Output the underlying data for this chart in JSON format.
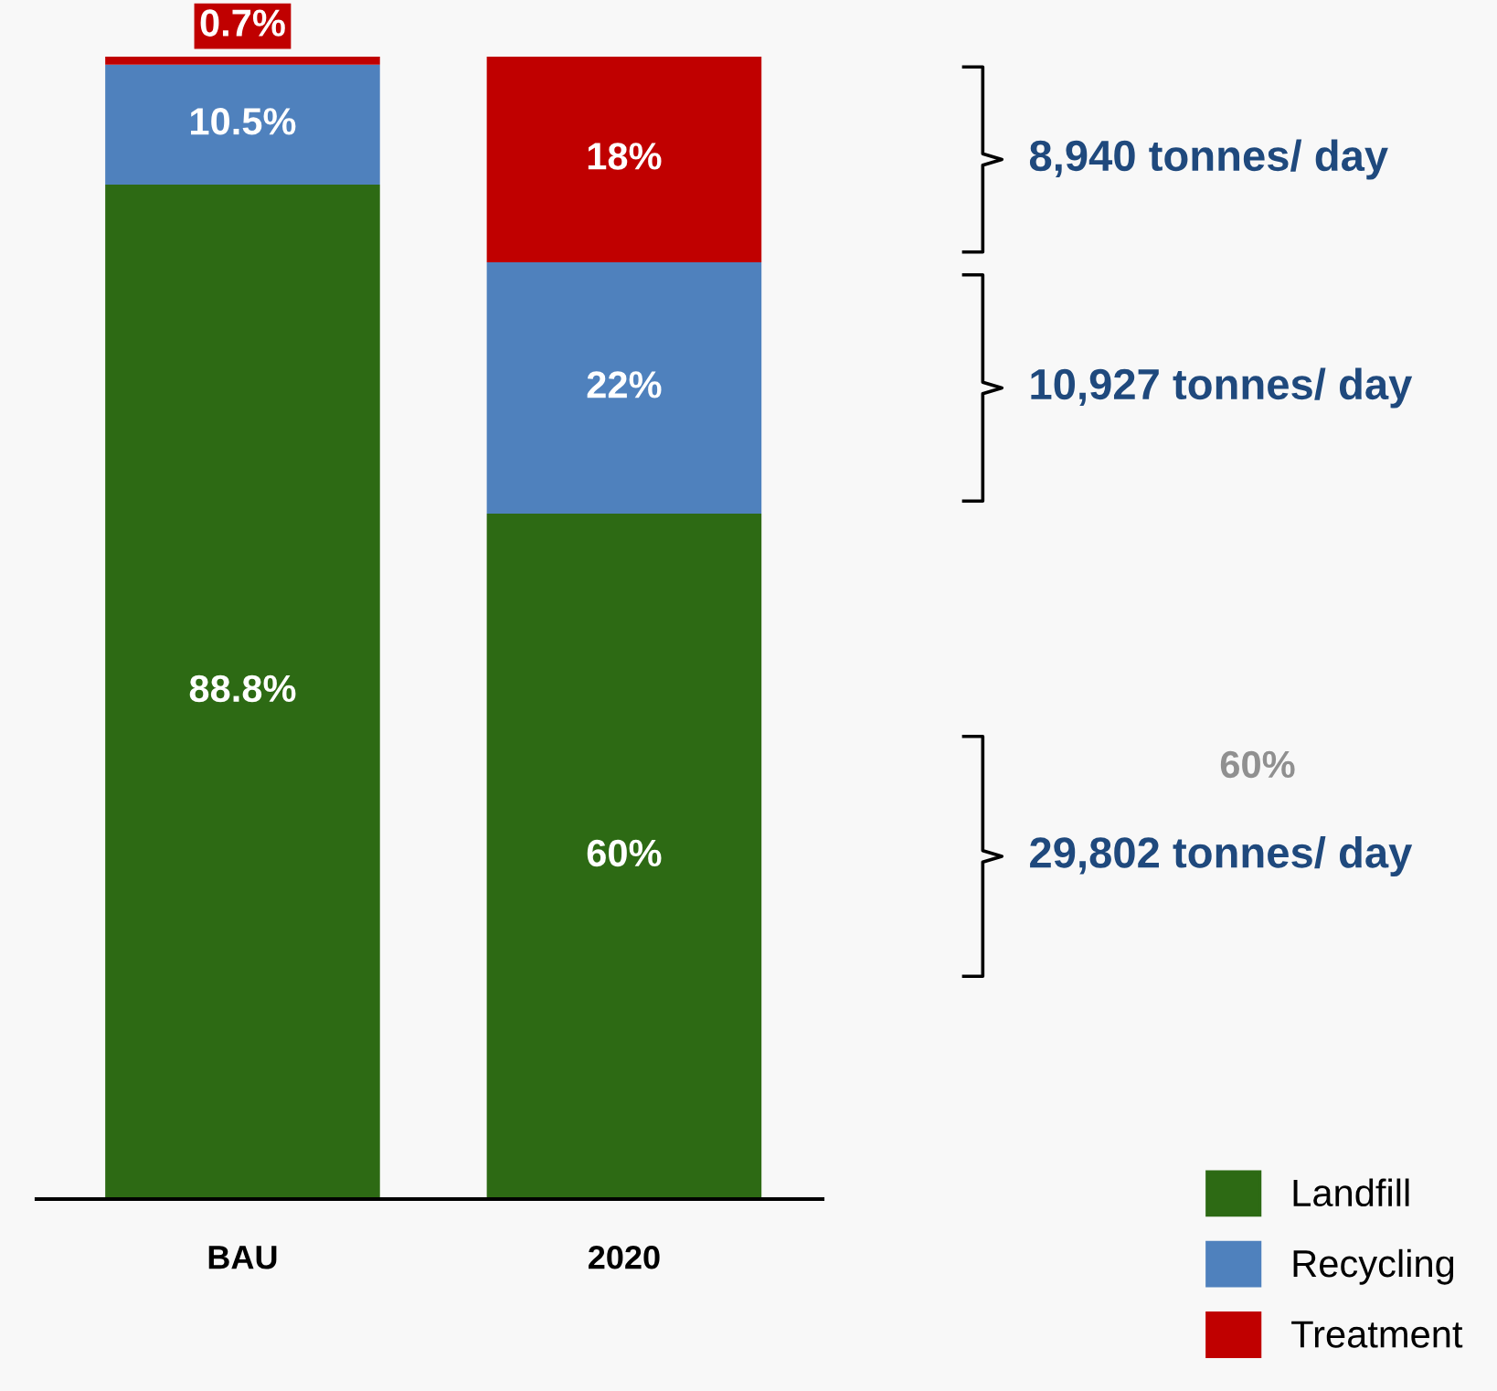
{
  "chart_data": {
    "type": "bar",
    "stacked": true,
    "categories": [
      "BAU",
      "2020"
    ],
    "series": [
      {
        "name": "Landfill",
        "color": "#2d6a14",
        "values": [
          88.8,
          60
        ],
        "value_labels": [
          "88.8%",
          "60%"
        ]
      },
      {
        "name": "Recycling",
        "color": "#4f81bd",
        "values": [
          10.5,
          22
        ],
        "value_labels": [
          "10.5%",
          "22%"
        ]
      },
      {
        "name": "Treatment",
        "color": "#c00000",
        "values": [
          0.7,
          18
        ],
        "value_labels": [
          "0.7%",
          "18%"
        ]
      }
    ],
    "annotations": [
      "8,940 tonnes/ day",
      "10,927 tonnes/ day",
      "29,802 tonnes/ day",
      "60%"
    ],
    "legend": "bottom right",
    "grid": false
  }
}
